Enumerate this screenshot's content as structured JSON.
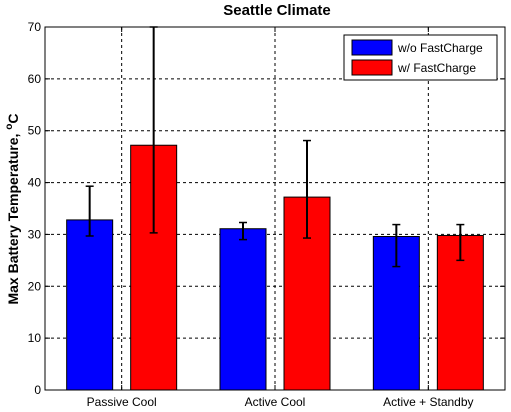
{
  "chart_data": {
    "type": "bar",
    "title": "Seattle Climate",
    "xlabel": "",
    "ylabel": "Max Battery Temperature, ",
    "ylabel_unit_sup": "o",
    "ylabel_unit": "C",
    "ylim": [
      0,
      70
    ],
    "yticks": [
      0,
      10,
      20,
      30,
      40,
      50,
      60,
      70
    ],
    "grid": true,
    "legend_position": "top-right",
    "categories": [
      "Passive Cool",
      "Active Cool",
      "Active + Standby"
    ],
    "series": [
      {
        "name": "w/o FastCharge",
        "color": "#0000ff",
        "values": [
          32.8,
          31.1,
          29.6
        ],
        "error_low": [
          29.7,
          29.0,
          23.8
        ],
        "error_high": [
          39.3,
          32.3,
          31.9
        ]
      },
      {
        "name": "w/ FastCharge",
        "color": "#ff0000",
        "values": [
          47.2,
          37.2,
          29.8
        ],
        "error_low": [
          30.3,
          29.3,
          25.0
        ],
        "error_high": [
          70.0,
          48.1,
          31.9
        ]
      }
    ]
  }
}
